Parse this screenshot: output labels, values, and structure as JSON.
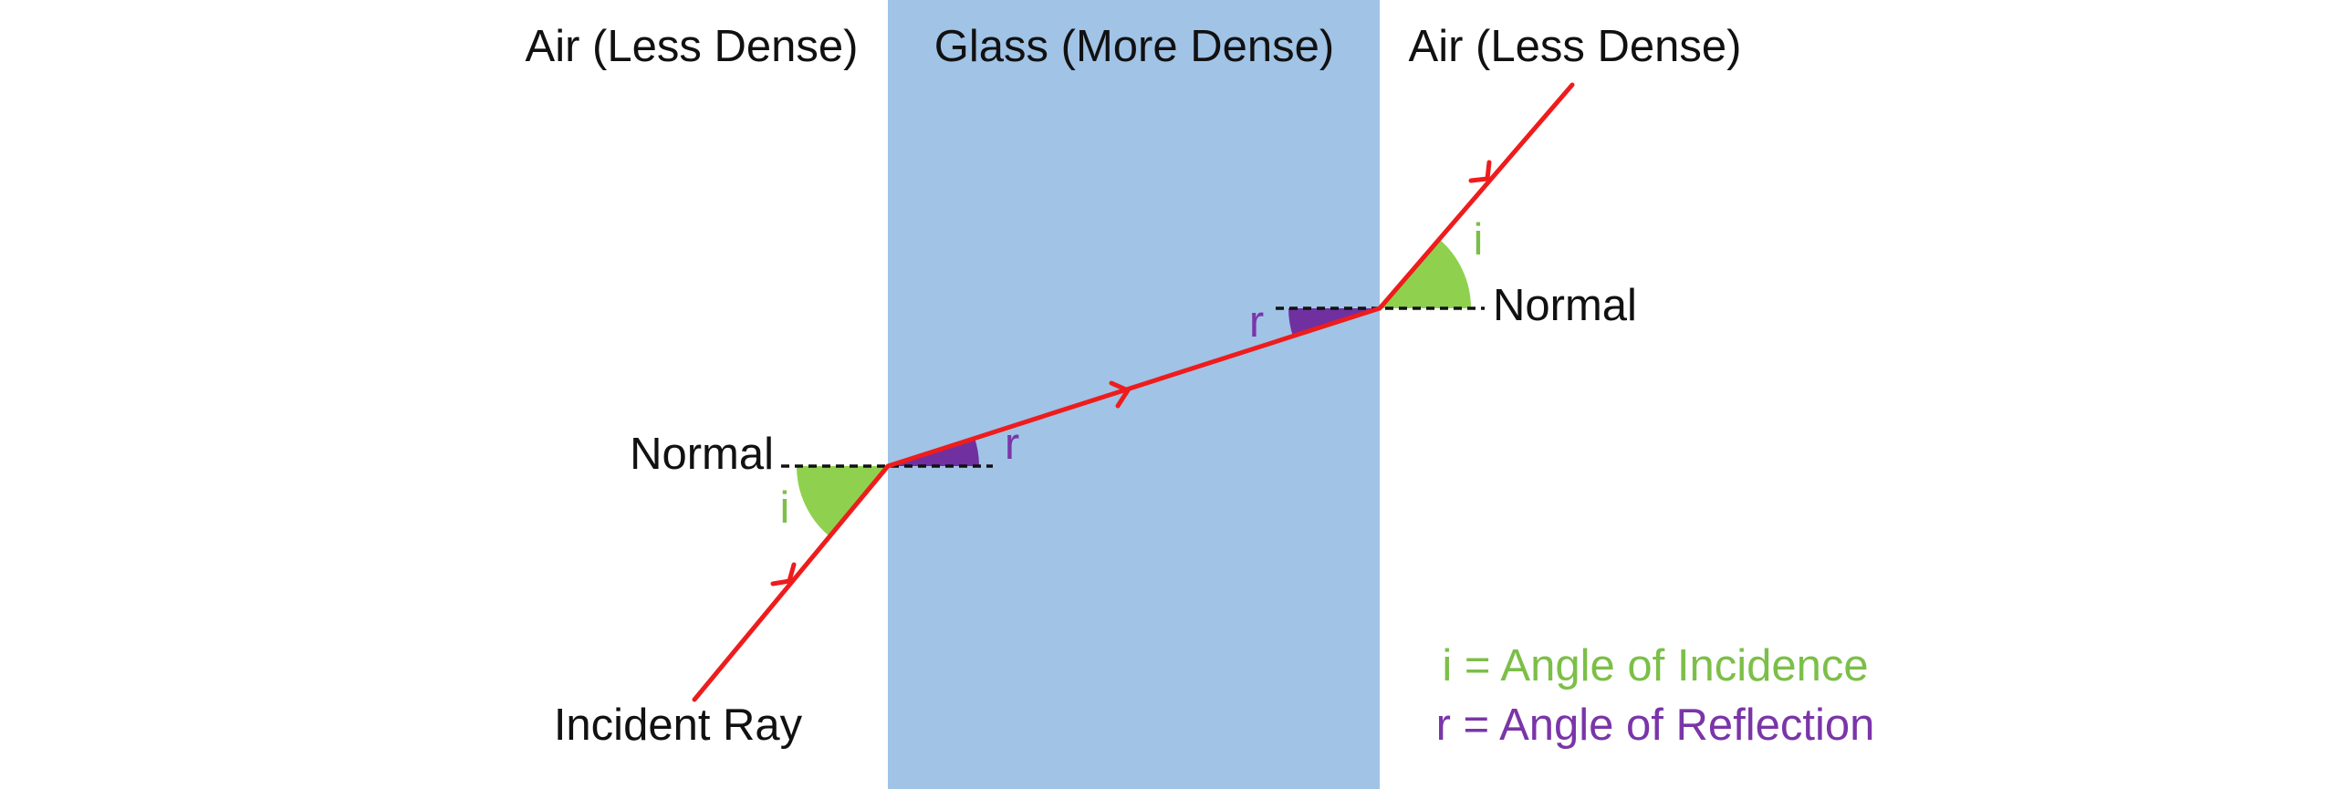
{
  "labels": {
    "left_medium": "Air (Less Dense)",
    "middle_medium": "Glass (More Dense)",
    "right_medium": "Air (Less Dense)",
    "normal_left": "Normal",
    "normal_right": "Normal",
    "incident_ray": "Incident Ray",
    "angle_i_first": "i",
    "angle_r_first": "r",
    "angle_r_second": "r",
    "angle_i_second": "i",
    "legend_i": "i = Angle of Incidence",
    "legend_r": "r = Angle of Reflection"
  }
}
